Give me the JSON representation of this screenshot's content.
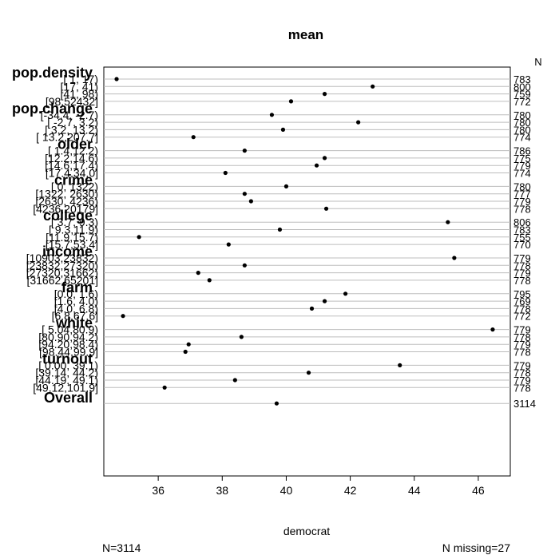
{
  "chart_data": {
    "type": "dotplot",
    "title": "mean",
    "xlabel": "democrat",
    "n_header": "N",
    "xlim": [
      34.3,
      47.0
    ],
    "x_ticks": [
      36,
      38,
      40,
      42,
      44,
      46
    ],
    "groups": [
      {
        "name": "pop.density",
        "rows": [
          {
            "label": "[ 1,  17)",
            "value": 34.7,
            "n": 783
          },
          {
            "label": "[17,  41)",
            "value": 42.7,
            "n": 800
          },
          {
            "label": "[41,  98)",
            "value": 41.2,
            "n": 759
          },
          {
            "label": "[98,52432]",
            "value": 40.15,
            "n": 772
          }
        ]
      },
      {
        "name": "pop.change",
        "rows": [
          {
            "label": "[-34.4, -2.7)",
            "value": 39.55,
            "n": 780
          },
          {
            "label": "[ -2.7,  3.2)",
            "value": 42.25,
            "n": 780
          },
          {
            "label": "[  3.2, 13.2)",
            "value": 39.9,
            "n": 780
          },
          {
            "label": "[ 13.2,207.7]",
            "value": 37.1,
            "n": 774
          }
        ]
      },
      {
        "name": "older",
        "rows": [
          {
            "label": "[ 1.4,12.2)",
            "value": 38.7,
            "n": 786
          },
          {
            "label": "[12.2,14.6)",
            "value": 41.2,
            "n": 775
          },
          {
            "label": "[14.6,17.4)",
            "value": 40.95,
            "n": 779
          },
          {
            "label": "[17.4,34.0]",
            "value": 38.1,
            "n": 774
          }
        ]
      },
      {
        "name": "crime",
        "rows": [
          {
            "label": "[   0, 1322)",
            "value": 40.0,
            "n": 780
          },
          {
            "label": "[1322, 2630)",
            "value": 38.7,
            "n": 777
          },
          {
            "label": "[2630, 4236)",
            "value": 38.9,
            "n": 779
          },
          {
            "label": "[4236,20179]",
            "value": 41.25,
            "n": 778
          }
        ]
      },
      {
        "name": "college",
        "rows": [
          {
            "label": "[ 3.7, 9.3)",
            "value": 45.05,
            "n": 806
          },
          {
            "label": "[ 9.3,11.9)",
            "value": 39.8,
            "n": 783
          },
          {
            "label": "[11.9,15.7)",
            "value": 35.4,
            "n": 755
          },
          {
            "label": "[15.7,53.4]",
            "value": 38.2,
            "n": 770
          }
        ]
      },
      {
        "name": "income",
        "rows": [
          {
            "label": "[10903,23832)",
            "value": 45.25,
            "n": 779
          },
          {
            "label": "[23832,27320)",
            "value": 38.7,
            "n": 778
          },
          {
            "label": "[27320,31662)",
            "value": 37.25,
            "n": 779
          },
          {
            "label": "[31662,65201]",
            "value": 37.6,
            "n": 778
          }
        ]
      },
      {
        "name": "farm",
        "rows": [
          {
            "label": "[0.0, 1.6)",
            "value": 41.85,
            "n": 795
          },
          {
            "label": "[1.6, 4.0)",
            "value": 41.2,
            "n": 769
          },
          {
            "label": "[4.0, 6.8)",
            "value": 40.8,
            "n": 778
          },
          {
            "label": "[6.8,67.6]",
            "value": 34.9,
            "n": 772
          }
        ]
      },
      {
        "name": "white",
        "rows": [
          {
            "label": "[ 5.04,80.9)",
            "value": 46.45,
            "n": 779
          },
          {
            "label": "[80.90,94.2)",
            "value": 38.6,
            "n": 778
          },
          {
            "label": "[94.20,98.4)",
            "value": 36.95,
            "n": 779
          },
          {
            "label": "[98.44,99.9]",
            "value": 36.85,
            "n": 778
          }
        ]
      },
      {
        "name": "turnout",
        "rows": [
          {
            "label": "[ 0.00, 39.1)",
            "value": 43.55,
            "n": 779
          },
          {
            "label": "[39.14, 44.2)",
            "value": 40.7,
            "n": 778
          },
          {
            "label": "[44.19, 49.1)",
            "value": 38.4,
            "n": 779
          },
          {
            "label": "[49.12,101.9]",
            "value": 36.2,
            "n": 778
          }
        ]
      },
      {
        "name": "Overall",
        "rows": [
          {
            "label": "",
            "value": 39.7,
            "n": 3114
          }
        ]
      }
    ],
    "footer": {
      "n_total": "N=3114",
      "n_missing": "N missing=27"
    }
  }
}
